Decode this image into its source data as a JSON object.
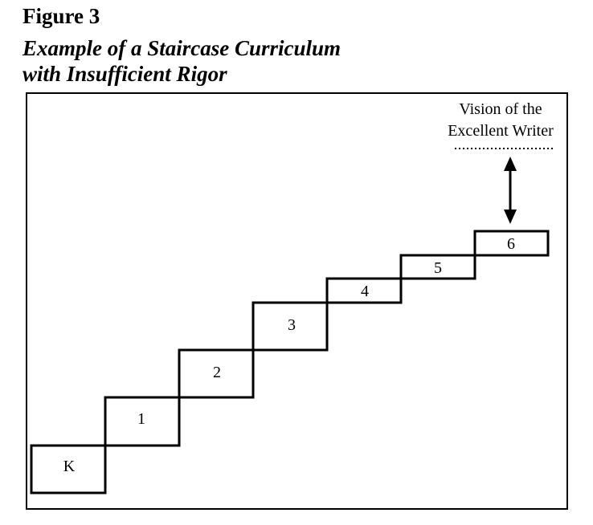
{
  "figure": {
    "label": "Figure 3",
    "title_line1": "Example of a Staircase Curriculum",
    "title_line2": "with Insufficient Rigor"
  },
  "steps": [
    {
      "label": "K"
    },
    {
      "label": "1"
    },
    {
      "label": "2"
    },
    {
      "label": "3"
    },
    {
      "label": "4"
    },
    {
      "label": "5"
    },
    {
      "label": "6"
    }
  ],
  "vision": {
    "line1": "Vision of the",
    "line2": "Excellent Writer"
  }
}
